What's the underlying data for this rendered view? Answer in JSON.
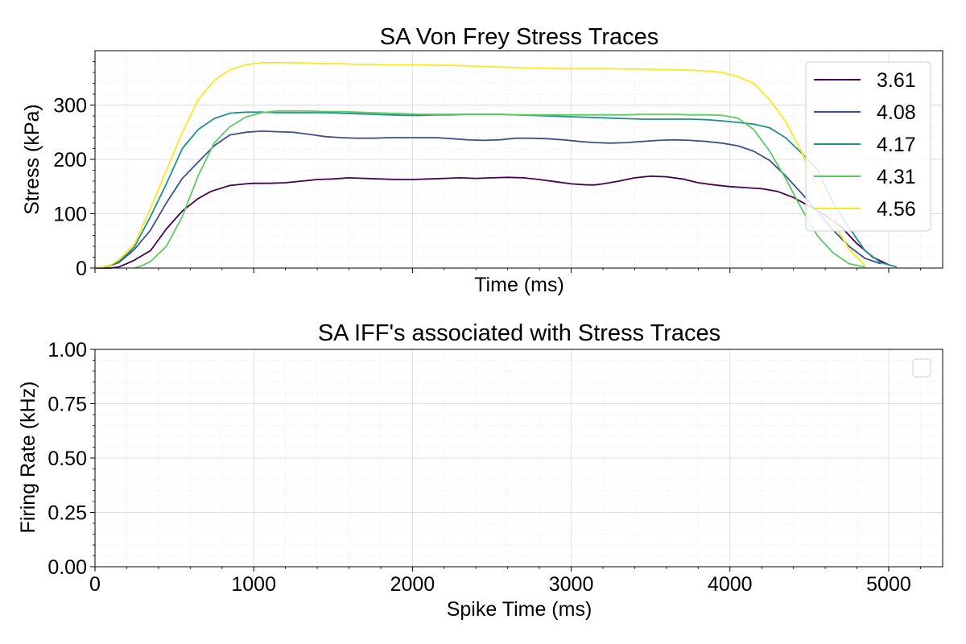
{
  "chart_data": [
    {
      "type": "line",
      "title": "SA Von Frey Stress Traces",
      "xlabel": "Time (ms)",
      "ylabel": "Stress (kPa)",
      "xlim": [
        0,
        5340
      ],
      "ylim": [
        0,
        400
      ],
      "yticks": [
        0,
        100,
        200,
        300
      ],
      "yticks_labels": [
        "0",
        "100",
        "200",
        "300"
      ],
      "xticks": [
        0,
        1000,
        2000,
        3000,
        4000,
        5000
      ],
      "show_x_tick_labels": false,
      "grid": true,
      "legend_position": "top-right",
      "series": [
        {
          "name": "3.61",
          "color": "#440154",
          "x": [
            0,
            100,
            150,
            200,
            250,
            350,
            450,
            550,
            650,
            730,
            850,
            950,
            1000,
            1100,
            1200,
            1300,
            1400,
            1500,
            1600,
            1700,
            1800,
            1900,
            2000,
            2100,
            2200,
            2300,
            2400,
            2500,
            2600,
            2700,
            2800,
            2900,
            3000,
            3100,
            3150,
            3200,
            3300,
            3400,
            3500,
            3600,
            3700,
            3800,
            3900,
            4000,
            4100,
            4200,
            4300,
            4400,
            4500,
            4600,
            4700,
            4800,
            4900,
            5000
          ],
          "y": [
            0,
            0,
            2,
            8,
            15,
            32,
            72,
            105,
            128,
            141,
            152,
            155,
            156,
            156,
            157,
            160,
            163,
            164,
            166,
            165,
            164,
            163,
            163,
            164,
            165,
            166,
            165,
            166,
            167,
            166,
            163,
            159,
            155,
            153,
            153,
            155,
            160,
            166,
            169,
            168,
            164,
            157,
            153,
            150,
            148,
            146,
            141,
            130,
            114,
            97,
            76,
            45,
            20,
            6
          ]
        },
        {
          "name": "4.08",
          "color": "#3b528b",
          "x": [
            0,
            50,
            100,
            150,
            200,
            250,
            350,
            450,
            550,
            650,
            750,
            850,
            950,
            1050,
            1150,
            1250,
            1350,
            1450,
            1550,
            1650,
            1750,
            1850,
            1950,
            2050,
            2150,
            2250,
            2350,
            2450,
            2550,
            2650,
            2750,
            2850,
            2950,
            3050,
            3150,
            3250,
            3350,
            3450,
            3550,
            3650,
            3750,
            3850,
            3950,
            4050,
            4150,
            4250,
            4350,
            4450,
            4550,
            4650,
            4750,
            4850,
            4950
          ],
          "y": [
            0,
            2,
            5,
            10,
            22,
            35,
            70,
            120,
            165,
            195,
            225,
            245,
            250,
            252,
            251,
            250,
            246,
            242,
            240,
            239,
            239,
            240,
            240,
            240,
            240,
            238,
            236,
            235,
            236,
            239,
            239,
            238,
            236,
            233,
            231,
            230,
            231,
            233,
            235,
            236,
            235,
            233,
            230,
            225,
            215,
            198,
            170,
            138,
            105,
            70,
            40,
            18,
            8
          ]
        },
        {
          "name": "4.17",
          "color": "#21908d",
          "x": [
            0,
            50,
            100,
            150,
            200,
            250,
            350,
            450,
            550,
            650,
            750,
            850,
            950,
            1050,
            1150,
            1250,
            1350,
            1450,
            1550,
            1650,
            1750,
            1850,
            1950,
            2050,
            2150,
            2250,
            2350,
            2450,
            2550,
            2650,
            2750,
            2850,
            2950,
            3050,
            3150,
            3250,
            3350,
            3450,
            3550,
            3650,
            3750,
            3850,
            3950,
            4050,
            4150,
            4250,
            4350,
            4450,
            4550,
            4650,
            4750,
            4850,
            4950,
            5050
          ],
          "y": [
            0,
            2,
            5,
            12,
            25,
            40,
            95,
            155,
            220,
            255,
            275,
            285,
            287,
            287,
            286,
            286,
            286,
            286,
            285,
            284,
            283,
            282,
            281,
            281,
            282,
            282,
            283,
            283,
            283,
            282,
            281,
            280,
            279,
            278,
            277,
            276,
            275,
            274,
            274,
            274,
            274,
            273,
            271,
            268,
            265,
            258,
            240,
            212,
            182,
            120,
            75,
            32,
            10,
            2
          ]
        },
        {
          "name": "4.31",
          "color": "#5ec962",
          "x": [
            250,
            300,
            350,
            450,
            550,
            650,
            750,
            850,
            950,
            1050,
            1150,
            1250,
            1350,
            1450,
            1550,
            1650,
            1750,
            1850,
            1950,
            2050,
            2150,
            2250,
            2350,
            2450,
            2550,
            2650,
            2750,
            2850,
            2950,
            3050,
            3150,
            3250,
            3350,
            3450,
            3550,
            3650,
            3750,
            3850,
            3950,
            4050,
            4150,
            4250,
            4350,
            4450,
            4550,
            4650,
            4750,
            4850
          ],
          "y": [
            0,
            5,
            12,
            40,
            95,
            170,
            230,
            260,
            278,
            286,
            289,
            289,
            289,
            288,
            288,
            287,
            286,
            285,
            284,
            283,
            283,
            283,
            283,
            283,
            283,
            282,
            282,
            282,
            282,
            282,
            282,
            282,
            282,
            283,
            283,
            283,
            282,
            282,
            281,
            276,
            255,
            215,
            165,
            110,
            60,
            28,
            8,
            2
          ]
        },
        {
          "name": "4.56",
          "color": "#fde725",
          "x": [
            0,
            50,
            100,
            150,
            200,
            250,
            350,
            450,
            550,
            650,
            750,
            850,
            950,
            1050,
            1150,
            1250,
            1350,
            1450,
            1550,
            1650,
            1750,
            1850,
            1950,
            2050,
            2150,
            2250,
            2350,
            2450,
            2550,
            2650,
            2750,
            2850,
            2950,
            3050,
            3150,
            3250,
            3350,
            3450,
            3550,
            3650,
            3750,
            3850,
            3950,
            4050,
            4150,
            4250,
            4350,
            4450,
            4550,
            4650,
            4750,
            4850
          ],
          "y": [
            0,
            2,
            6,
            15,
            30,
            45,
            110,
            180,
            250,
            310,
            345,
            365,
            374,
            378,
            378,
            378,
            377,
            376,
            376,
            375,
            375,
            374,
            374,
            374,
            373,
            373,
            372,
            371,
            370,
            369,
            368,
            368,
            367,
            367,
            367,
            367,
            366,
            366,
            365,
            365,
            364,
            363,
            360,
            352,
            340,
            310,
            270,
            215,
            150,
            85,
            35,
            5
          ]
        }
      ]
    },
    {
      "type": "line",
      "title": "SA IFF's associated with Stress Traces",
      "xlabel": "Spike Time (ms)",
      "ylabel": "Firing Rate (kHz)",
      "xlim": [
        0,
        5340
      ],
      "ylim": [
        0,
        1
      ],
      "yticks": [
        0,
        0.25,
        0.5,
        0.75,
        1.0
      ],
      "yticks_labels": [
        "0.00",
        "0.25",
        "0.50",
        "0.75",
        "1.00"
      ],
      "xticks": [
        0,
        1000,
        2000,
        3000,
        4000,
        5000
      ],
      "xticks_labels": [
        "0",
        "1000",
        "2000",
        "3000",
        "4000",
        "5000"
      ],
      "grid": true,
      "legend_position": "top-right",
      "series": []
    }
  ]
}
